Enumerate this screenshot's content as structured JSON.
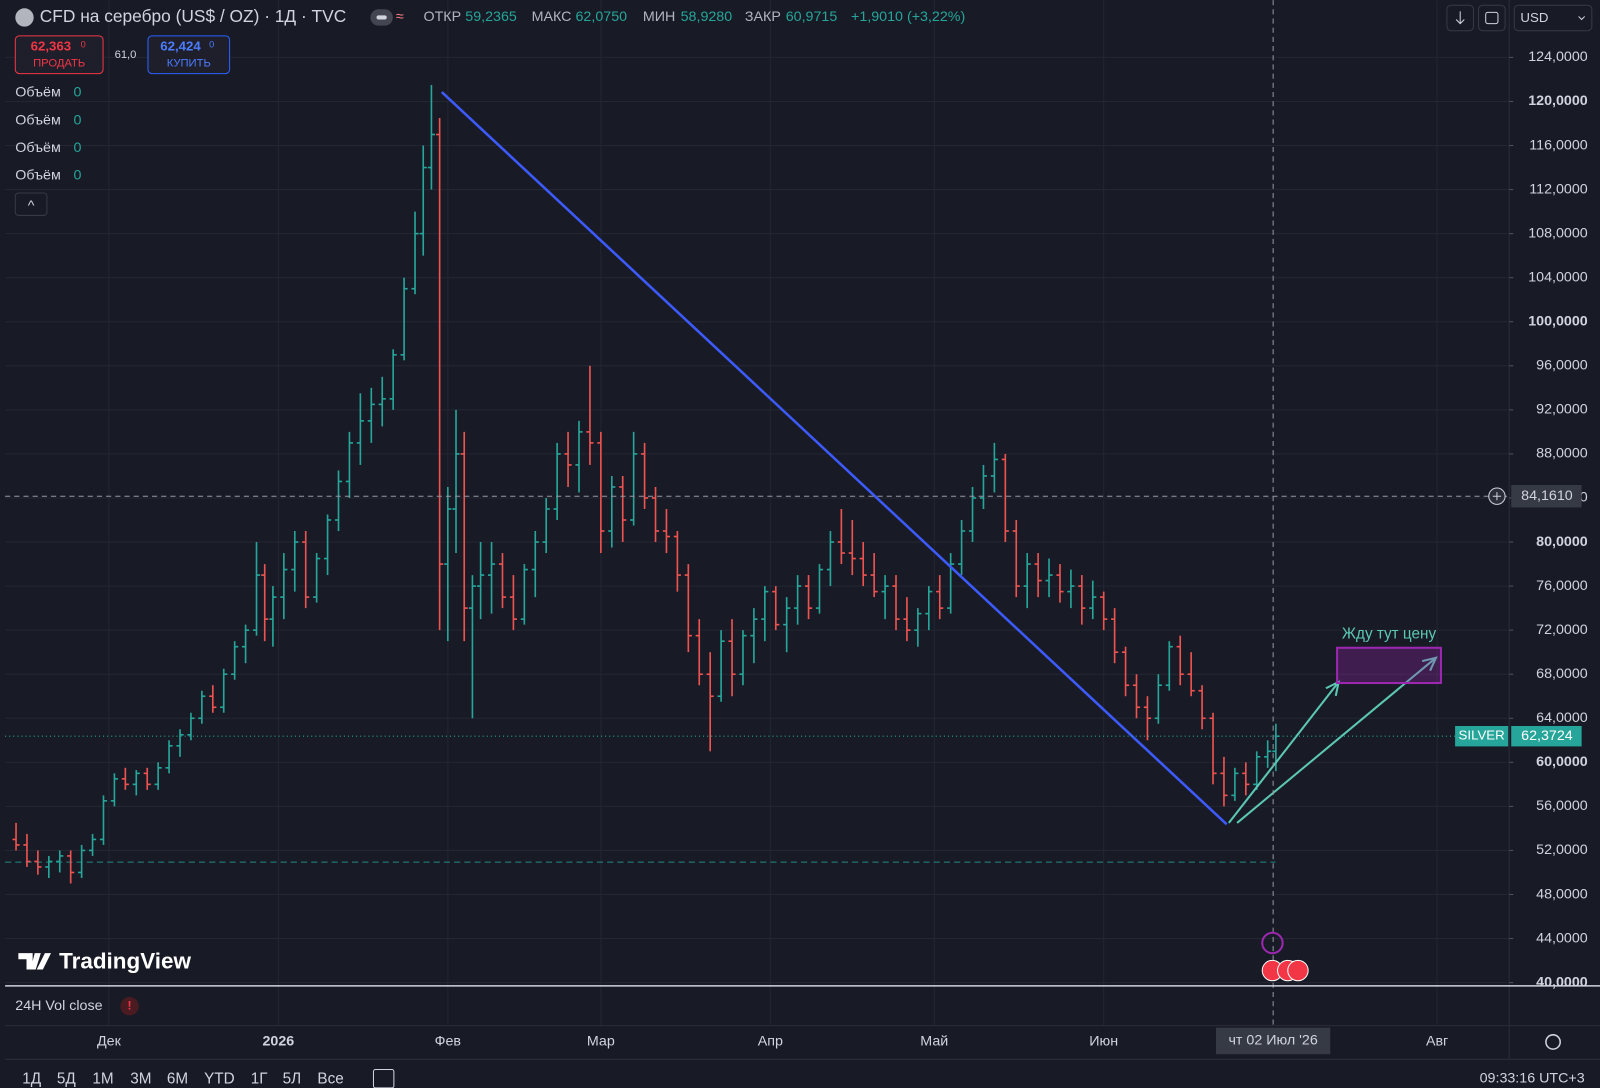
{
  "header": {
    "title": "CFD на серебро (US$ / OZ) · 1Д · TVC",
    "open_label": "ОТКР",
    "open": "59,2365",
    "high_label": "МАКС",
    "high": "62,0750",
    "low_label": "МИН",
    "low": "58,9280",
    "close_label": "ЗАКР",
    "close": "60,9715",
    "change": "+1,9010 (+3,22%)",
    "sell_price": "62,363",
    "sell_price_sup": "0",
    "sell_label": "ПРОДАТЬ",
    "spread": "61,0",
    "buy_price": "62,424",
    "buy_price_sup": "0",
    "buy_label": "КУПИТЬ",
    "currency": "USD",
    "volumes": [
      {
        "label": "Объём",
        "value": "0"
      },
      {
        "label": "Объём",
        "value": "0"
      },
      {
        "label": "Объём",
        "value": "0"
      },
      {
        "label": "Объём",
        "value": "0"
      }
    ],
    "collapse": "^",
    "logo": "TradingView"
  },
  "footer": {
    "indicator": "24H Vol close",
    "warning": "!",
    "ranges": [
      "1Д",
      "5Д",
      "1М",
      "3М",
      "6М",
      "YTD",
      "1Г",
      "5Л",
      "Все"
    ],
    "clock": "09:33:16 UTC+3"
  },
  "chart_data": {
    "type": "ohlc",
    "up_color": "#26a69a",
    "down_color": "#ef5350",
    "grid": true,
    "xlim": [
      -19,
      256
    ],
    "xticks": [
      {
        "value": 0,
        "label": "Дек"
      },
      {
        "value": 31,
        "label": "2026"
      },
      {
        "value": 62,
        "label": "Фев"
      },
      {
        "value": 90,
        "label": "Мар"
      },
      {
        "value": 121,
        "label": "Апр"
      },
      {
        "value": 151,
        "label": "Май"
      },
      {
        "value": 182,
        "label": "Июн"
      },
      {
        "value": 243,
        "label": "Авг"
      }
    ],
    "ylim": [
      39.8,
      129.2
    ],
    "yticks": [
      {
        "value": 40,
        "label": "40,0000"
      },
      {
        "value": 44,
        "label": "44,0000"
      },
      {
        "value": 48,
        "label": "48,0000"
      },
      {
        "value": 52,
        "label": "52,0000"
      },
      {
        "value": 56,
        "label": "56,0000"
      },
      {
        "value": 60,
        "label": "60,0000"
      },
      {
        "value": 64,
        "label": "64,0000"
      },
      {
        "value": 68,
        "label": "68,0000"
      },
      {
        "value": 72,
        "label": "72,0000"
      },
      {
        "value": 76,
        "label": "76,0000"
      },
      {
        "value": 80,
        "label": "80,0000"
      },
      {
        "value": 84,
        "label": "84,0000"
      },
      {
        "value": 88,
        "label": "88,0000"
      },
      {
        "value": 92,
        "label": "92,0000"
      },
      {
        "value": 96,
        "label": "96,0000"
      },
      {
        "value": 100,
        "label": "100,0000"
      },
      {
        "value": 104,
        "label": "104,0000"
      },
      {
        "value": 108,
        "label": "108,0000"
      },
      {
        "value": 112,
        "label": "112,0000"
      },
      {
        "value": 116,
        "label": "116,0000"
      },
      {
        "value": 120,
        "label": "120,0000"
      },
      {
        "value": 124,
        "label": "124,0000"
      }
    ],
    "crosshair": {
      "x": 213,
      "date_label": "чт 02 Июл '26",
      "price": {
        "value": 84.161,
        "label": "84,1610"
      }
    },
    "last_price": {
      "name": "SILVER",
      "price": {
        "value": 62.3724,
        "label": "62,3724"
      }
    },
    "support": {
      "value": 50.94
    },
    "trendline": {
      "x": [
        60.9,
        204.5
      ],
      "y": [
        120.85,
        54.37
      ],
      "color": "#3d5afe"
    },
    "arrows": [
      {
        "x": [
          204.9,
          225
        ],
        "y": [
          54.5,
          67.3
        ]
      },
      {
        "x": [
          206.4,
          242.8
        ],
        "y": [
          54.5,
          69.5
        ]
      }
    ],
    "arrow_color": "#5cc8b4",
    "target_zone": {
      "label": "Жду тут цену",
      "x": [
        224.7,
        243.7
      ],
      "y": [
        67.2,
        70.4
      ],
      "color": "#9c27b0"
    },
    "bars": [
      {
        "x": -17,
        "open": 53,
        "high": 54.5,
        "low": 52,
        "close": 52.5
      },
      {
        "x": -15,
        "open": 52.5,
        "high": 53.5,
        "low": 50.5,
        "close": 51
      },
      {
        "x": -13,
        "open": 51,
        "high": 52,
        "low": 49.8,
        "close": 50.5
      },
      {
        "x": -11,
        "open": 50.5,
        "high": 51.5,
        "low": 49.5,
        "close": 51
      },
      {
        "x": -9,
        "open": 51,
        "high": 52,
        "low": 50,
        "close": 51.5
      },
      {
        "x": -7,
        "open": 51.5,
        "high": 52,
        "low": 49,
        "close": 50
      },
      {
        "x": -5,
        "open": 50,
        "high": 52.5,
        "low": 49.5,
        "close": 52
      },
      {
        "x": -3,
        "open": 52,
        "high": 53.5,
        "low": 51.5,
        "close": 53
      },
      {
        "x": -1,
        "open": 53,
        "high": 57,
        "low": 52.5,
        "close": 56.5
      },
      {
        "x": 1,
        "open": 56.5,
        "high": 59,
        "low": 56,
        "close": 58.5
      },
      {
        "x": 3,
        "open": 58.5,
        "high": 59.5,
        "low": 57.5,
        "close": 58
      },
      {
        "x": 5,
        "open": 58,
        "high": 59.3,
        "low": 57,
        "close": 59
      },
      {
        "x": 7,
        "open": 59,
        "high": 59.5,
        "low": 57.5,
        "close": 58
      },
      {
        "x": 9,
        "open": 58,
        "high": 60,
        "low": 57.5,
        "close": 59.5
      },
      {
        "x": 11,
        "open": 59.5,
        "high": 62,
        "low": 59,
        "close": 61.5
      },
      {
        "x": 13,
        "open": 61.5,
        "high": 63,
        "low": 60.5,
        "close": 62.5
      },
      {
        "x": 15,
        "open": 62.5,
        "high": 64.5,
        "low": 62,
        "close": 64
      },
      {
        "x": 17,
        "open": 64,
        "high": 66.5,
        "low": 63.5,
        "close": 66
      },
      {
        "x": 19,
        "open": 66,
        "high": 67,
        "low": 64.5,
        "close": 65
      },
      {
        "x": 21,
        "open": 65,
        "high": 68.5,
        "low": 64.5,
        "close": 68
      },
      {
        "x": 23,
        "open": 68,
        "high": 71,
        "low": 67.5,
        "close": 70.5
      },
      {
        "x": 25,
        "open": 70.5,
        "high": 72.5,
        "low": 69,
        "close": 72
      },
      {
        "x": 27,
        "open": 72,
        "high": 80,
        "low": 71.5,
        "close": 77
      },
      {
        "x": 28.5,
        "open": 77,
        "high": 78,
        "low": 71,
        "close": 73
      },
      {
        "x": 30,
        "open": 73,
        "high": 76,
        "low": 70.5,
        "close": 75
      },
      {
        "x": 32,
        "open": 75,
        "high": 79,
        "low": 73,
        "close": 77.5
      },
      {
        "x": 34,
        "open": 77.5,
        "high": 81,
        "low": 75.5,
        "close": 80
      },
      {
        "x": 36,
        "open": 80,
        "high": 81,
        "low": 74,
        "close": 75
      },
      {
        "x": 38,
        "open": 75,
        "high": 79,
        "low": 74.5,
        "close": 78.5
      },
      {
        "x": 40,
        "open": 78.5,
        "high": 82.5,
        "low": 77,
        "close": 82
      },
      {
        "x": 42,
        "open": 82,
        "high": 86.5,
        "low": 81,
        "close": 85.5
      },
      {
        "x": 44,
        "open": 85.5,
        "high": 90,
        "low": 84,
        "close": 89
      },
      {
        "x": 46,
        "open": 89,
        "high": 93.5,
        "low": 87,
        "close": 91
      },
      {
        "x": 48,
        "open": 91,
        "high": 94,
        "low": 89,
        "close": 92.5
      },
      {
        "x": 50,
        "open": 92.5,
        "high": 95,
        "low": 90.5,
        "close": 93
      },
      {
        "x": 52,
        "open": 93,
        "high": 97.5,
        "low": 92,
        "close": 97
      },
      {
        "x": 54,
        "open": 97,
        "high": 104,
        "low": 96.5,
        "close": 103
      },
      {
        "x": 56,
        "open": 103,
        "high": 110,
        "low": 102.5,
        "close": 108
      },
      {
        "x": 57.5,
        "open": 108,
        "high": 116,
        "low": 106,
        "close": 114
      },
      {
        "x": 59,
        "open": 114,
        "high": 121.5,
        "low": 112,
        "close": 117
      },
      {
        "x": 60.5,
        "open": 117,
        "high": 118.5,
        "low": 72,
        "close": 78
      },
      {
        "x": 62,
        "open": 78,
        "high": 85,
        "low": 71,
        "close": 83
      },
      {
        "x": 63.5,
        "open": 83,
        "high": 92,
        "low": 79,
        "close": 88
      },
      {
        "x": 65,
        "open": 88,
        "high": 90,
        "low": 71,
        "close": 74
      },
      {
        "x": 66.5,
        "open": 74,
        "high": 77,
        "low": 64,
        "close": 76
      },
      {
        "x": 68,
        "open": 76,
        "high": 80,
        "low": 73,
        "close": 77
      },
      {
        "x": 70,
        "open": 77,
        "high": 80,
        "low": 73.5,
        "close": 78
      },
      {
        "x": 72,
        "open": 78,
        "high": 79,
        "low": 74,
        "close": 75
      },
      {
        "x": 74,
        "open": 75,
        "high": 77,
        "low": 72,
        "close": 73
      },
      {
        "x": 76,
        "open": 73,
        "high": 78,
        "low": 72.5,
        "close": 77.5
      },
      {
        "x": 78,
        "open": 77.5,
        "high": 81,
        "low": 75,
        "close": 80
      },
      {
        "x": 80,
        "open": 80,
        "high": 84,
        "low": 79,
        "close": 83
      },
      {
        "x": 82,
        "open": 83,
        "high": 89,
        "low": 82,
        "close": 88
      },
      {
        "x": 84,
        "open": 88,
        "high": 90,
        "low": 85,
        "close": 87
      },
      {
        "x": 86,
        "open": 87,
        "high": 91,
        "low": 84.5,
        "close": 90
      },
      {
        "x": 88,
        "open": 90,
        "high": 96,
        "low": 87,
        "close": 89
      },
      {
        "x": 90,
        "open": 89,
        "high": 90,
        "low": 79,
        "close": 81
      },
      {
        "x": 92,
        "open": 81,
        "high": 86,
        "low": 79.5,
        "close": 85
      },
      {
        "x": 94,
        "open": 85,
        "high": 86,
        "low": 80,
        "close": 82
      },
      {
        "x": 96,
        "open": 82,
        "high": 90,
        "low": 81.5,
        "close": 88
      },
      {
        "x": 98,
        "open": 88,
        "high": 89,
        "low": 83,
        "close": 84
      },
      {
        "x": 100,
        "open": 84,
        "high": 85,
        "low": 80,
        "close": 81
      },
      {
        "x": 102,
        "open": 81,
        "high": 83,
        "low": 79,
        "close": 80.5
      },
      {
        "x": 104,
        "open": 80.5,
        "high": 81,
        "low": 75.5,
        "close": 77
      },
      {
        "x": 106,
        "open": 77,
        "high": 78,
        "low": 70,
        "close": 71.5
      },
      {
        "x": 108,
        "open": 71.5,
        "high": 73,
        "low": 67,
        "close": 68
      },
      {
        "x": 110,
        "open": 68,
        "high": 70,
        "low": 61,
        "close": 66
      },
      {
        "x": 112,
        "open": 66,
        "high": 72,
        "low": 65.5,
        "close": 71
      },
      {
        "x": 114,
        "open": 71,
        "high": 73,
        "low": 66,
        "close": 68
      },
      {
        "x": 116,
        "open": 68,
        "high": 72,
        "low": 67,
        "close": 71.5
      },
      {
        "x": 118,
        "open": 71.5,
        "high": 74,
        "low": 69,
        "close": 73
      },
      {
        "x": 120,
        "open": 73,
        "high": 76,
        "low": 71,
        "close": 75.5
      },
      {
        "x": 122,
        "open": 75.5,
        "high": 76,
        "low": 72,
        "close": 72.5
      },
      {
        "x": 124,
        "open": 72.5,
        "high": 75,
        "low": 70,
        "close": 74
      },
      {
        "x": 126,
        "open": 74,
        "high": 77,
        "low": 72.5,
        "close": 76
      },
      {
        "x": 128,
        "open": 76,
        "high": 77,
        "low": 73,
        "close": 74
      },
      {
        "x": 130,
        "open": 74,
        "high": 78,
        "low": 73.5,
        "close": 77.5
      },
      {
        "x": 132,
        "open": 77.5,
        "high": 81,
        "low": 76,
        "close": 80
      },
      {
        "x": 134,
        "open": 80,
        "high": 83,
        "low": 78,
        "close": 79
      },
      {
        "x": 136,
        "open": 79,
        "high": 82,
        "low": 77,
        "close": 78.5
      },
      {
        "x": 138,
        "open": 78.5,
        "high": 80,
        "low": 76,
        "close": 77
      },
      {
        "x": 140,
        "open": 77,
        "high": 79,
        "low": 75,
        "close": 75.5
      },
      {
        "x": 142,
        "open": 75.5,
        "high": 77,
        "low": 73,
        "close": 76
      },
      {
        "x": 144,
        "open": 76,
        "high": 77,
        "low": 72,
        "close": 73
      },
      {
        "x": 146,
        "open": 73,
        "high": 75,
        "low": 71,
        "close": 72
      },
      {
        "x": 148,
        "open": 72,
        "high": 74,
        "low": 70.5,
        "close": 73.5
      },
      {
        "x": 150,
        "open": 73.5,
        "high": 76,
        "low": 72,
        "close": 75.5
      },
      {
        "x": 152,
        "open": 75.5,
        "high": 77,
        "low": 73,
        "close": 74
      },
      {
        "x": 154,
        "open": 74,
        "high": 79,
        "low": 73.5,
        "close": 78
      },
      {
        "x": 156,
        "open": 78,
        "high": 82,
        "low": 77,
        "close": 81
      },
      {
        "x": 158,
        "open": 81,
        "high": 85,
        "low": 80,
        "close": 84
      },
      {
        "x": 160,
        "open": 84,
        "high": 87,
        "low": 83,
        "close": 86
      },
      {
        "x": 162,
        "open": 86,
        "high": 89,
        "low": 84.5,
        "close": 87.5
      },
      {
        "x": 164,
        "open": 87.5,
        "high": 88,
        "low": 80,
        "close": 81
      },
      {
        "x": 166,
        "open": 81,
        "high": 82,
        "low": 75,
        "close": 76
      },
      {
        "x": 168,
        "open": 76,
        "high": 79,
        "low": 74,
        "close": 78
      },
      {
        "x": 170,
        "open": 78,
        "high": 79,
        "low": 75,
        "close": 76.5
      },
      {
        "x": 172,
        "open": 76.5,
        "high": 78.5,
        "low": 75,
        "close": 77
      },
      {
        "x": 174,
        "open": 77,
        "high": 78,
        "low": 74.5,
        "close": 75.5
      },
      {
        "x": 176,
        "open": 75.5,
        "high": 77.5,
        "low": 74,
        "close": 76
      },
      {
        "x": 178,
        "open": 76,
        "high": 77,
        "low": 72.5,
        "close": 74
      },
      {
        "x": 180,
        "open": 74,
        "high": 76.5,
        "low": 73,
        "close": 75
      },
      {
        "x": 182,
        "open": 75,
        "high": 75.5,
        "low": 72,
        "close": 73
      },
      {
        "x": 184,
        "open": 73,
        "high": 74,
        "low": 69,
        "close": 70
      },
      {
        "x": 186,
        "open": 70,
        "high": 70.5,
        "low": 66,
        "close": 67
      },
      {
        "x": 188,
        "open": 67,
        "high": 68,
        "low": 64,
        "close": 65
      },
      {
        "x": 190,
        "open": 65,
        "high": 66,
        "low": 62,
        "close": 64
      },
      {
        "x": 192,
        "open": 64,
        "high": 68,
        "low": 63.5,
        "close": 67
      },
      {
        "x": 194,
        "open": 67,
        "high": 71,
        "low": 66.5,
        "close": 70.5
      },
      {
        "x": 196,
        "open": 70.5,
        "high": 71.5,
        "low": 67,
        "close": 68
      },
      {
        "x": 198,
        "open": 68,
        "high": 70,
        "low": 66,
        "close": 66.5
      },
      {
        "x": 200,
        "open": 66.5,
        "high": 67,
        "low": 63,
        "close": 64
      },
      {
        "x": 202,
        "open": 64,
        "high": 64.5,
        "low": 58,
        "close": 59
      },
      {
        "x": 204,
        "open": 59,
        "high": 60.5,
        "low": 56,
        "close": 57
      },
      {
        "x": 206,
        "open": 57,
        "high": 59.5,
        "low": 56.5,
        "close": 59
      },
      {
        "x": 208,
        "open": 59,
        "high": 60,
        "low": 57,
        "close": 58
      },
      {
        "x": 210,
        "open": 58,
        "high": 61,
        "low": 57.5,
        "close": 60.5
      },
      {
        "x": 212,
        "open": 60.5,
        "high": 62,
        "low": 59.5,
        "close": 61
      },
      {
        "x": 213.5,
        "open": 61,
        "high": 63.5,
        "low": 59.2,
        "close": 62.3724
      }
    ]
  }
}
